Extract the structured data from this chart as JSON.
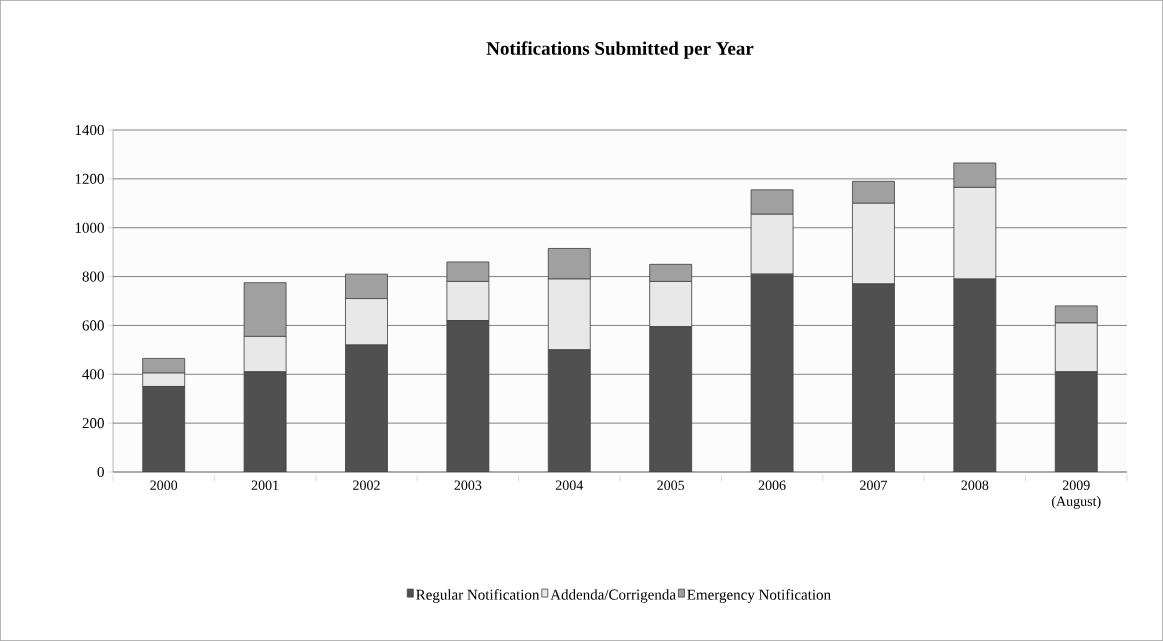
{
  "chart_data": {
    "type": "bar",
    "title": "Notifications Submitted per Year",
    "stacked": true,
    "categories": [
      "2000",
      "2001",
      "2002",
      "2003",
      "2004",
      "2005",
      "2006",
      "2007",
      "2008",
      "2009 (August)"
    ],
    "series": [
      {
        "name": "Regular Notification",
        "color": "#505050",
        "values": [
          350,
          410,
          520,
          620,
          500,
          595,
          810,
          770,
          790,
          410
        ]
      },
      {
        "name": "Addenda/Corrigenda",
        "color": "#e8e8e8",
        "values": [
          55,
          145,
          190,
          160,
          290,
          185,
          245,
          330,
          375,
          200
        ]
      },
      {
        "name": "Emergency Notification",
        "color": "#a0a0a0",
        "values": [
          60,
          220,
          100,
          80,
          125,
          70,
          100,
          90,
          100,
          70
        ]
      }
    ],
    "ylim": [
      0,
      1400
    ],
    "yticks": [
      0,
      200,
      400,
      600,
      800,
      1000,
      1200,
      1400
    ],
    "grid": "y",
    "legend": "bottom"
  }
}
